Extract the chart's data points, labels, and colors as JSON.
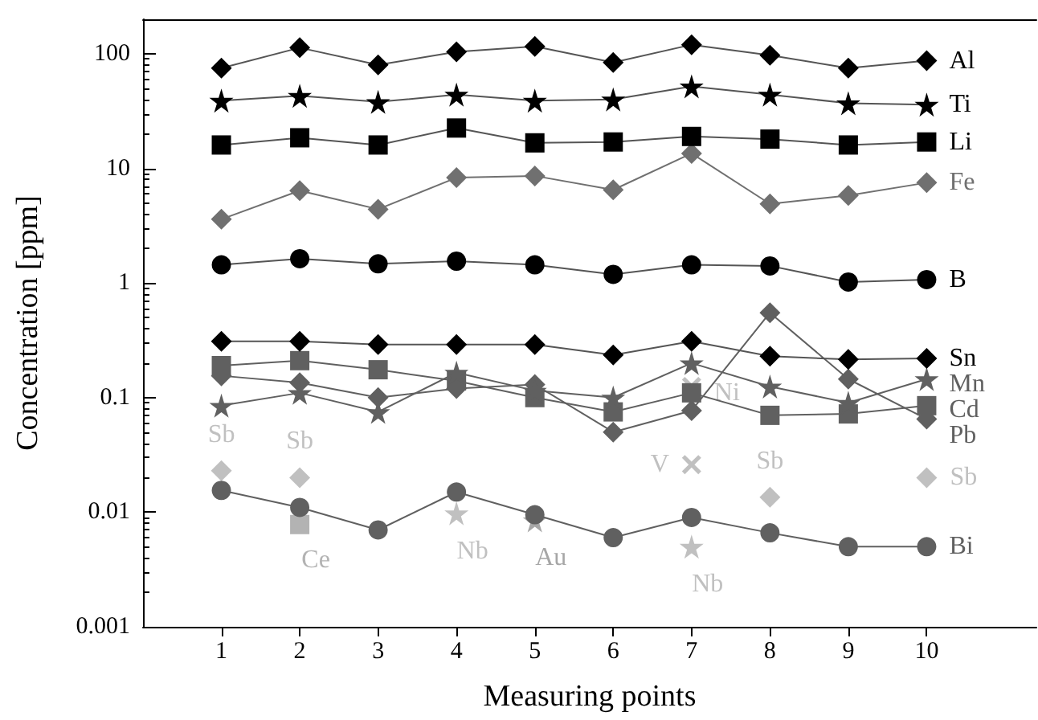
{
  "chart_data": {
    "type": "line",
    "xlabel": "Measuring points",
    "ylabel": "Concentration [ppm]",
    "log": "y",
    "grid": false,
    "legend": false,
    "x": [
      1,
      2,
      3,
      4,
      5,
      6,
      7,
      8,
      9,
      10
    ],
    "xlim": [
      0,
      11.4
    ],
    "xticks": [
      1,
      2,
      3,
      4,
      5,
      6,
      7,
      8,
      9,
      10
    ],
    "ylim": [
      0.001,
      200
    ],
    "yticks": [
      0.001,
      0.01,
      0.1,
      1,
      10,
      100
    ],
    "series": [
      {
        "name": "Al",
        "color": "#000000",
        "marker": "diamond",
        "values": [
          75,
          113,
          80,
          104,
          116,
          84,
          120,
          97,
          75,
          87
        ]
      },
      {
        "name": "Ti",
        "color": "#000000",
        "marker": "star",
        "values": [
          39,
          43,
          38,
          44,
          39,
          40,
          52,
          44,
          37,
          36
        ]
      },
      {
        "name": "Li",
        "color": "#000000",
        "marker": "square",
        "values": [
          16,
          18.5,
          16,
          22.5,
          16.7,
          17,
          19,
          18,
          16,
          17
        ]
      },
      {
        "name": "Fe",
        "color": "#707070",
        "marker": "diamond",
        "values": [
          3.6,
          6.4,
          4.4,
          8.3,
          8.6,
          6.5,
          13.5,
          4.9,
          5.8,
          7.5
        ]
      },
      {
        "name": "B",
        "color": "#000000",
        "marker": "circle",
        "values": [
          1.44,
          1.63,
          1.47,
          1.55,
          1.44,
          1.19,
          1.44,
          1.41,
          1.02,
          1.07
        ]
      },
      {
        "name": "Sn",
        "color": "#000000",
        "marker": "diamond",
        "values": [
          0.31,
          0.31,
          0.29,
          0.29,
          0.29,
          0.235,
          0.31,
          0.23,
          0.215,
          0.22
        ]
      },
      {
        "name": "Mn",
        "color": "#606060",
        "marker": "star",
        "values": [
          0.085,
          0.11,
          0.075,
          0.165,
          0.115,
          0.1,
          0.2,
          0.125,
          0.09,
          0.145
        ]
      },
      {
        "name": "Cd",
        "color": "#606060",
        "marker": "square",
        "values": [
          0.19,
          0.21,
          0.175,
          0.14,
          0.1,
          0.075,
          0.11,
          0.07,
          0.072,
          0.085
        ]
      },
      {
        "name": "Pb",
        "color": "#606060",
        "marker": "diamond",
        "values": [
          0.155,
          0.135,
          0.1,
          0.12,
          0.13,
          0.05,
          0.077,
          0.55,
          0.145,
          0.065
        ]
      },
      {
        "name": "Bi",
        "color": "#606060",
        "marker": "circle",
        "values": [
          0.0155,
          0.011,
          0.007,
          0.015,
          0.0095,
          0.006,
          0.009,
          0.0066,
          0.005,
          0.005
        ]
      },
      {
        "name": "Sb",
        "type": "scatter",
        "color": "#b0b0b0",
        "marker": "diamond",
        "x": [
          1,
          2,
          8,
          10
        ],
        "values": [
          0.023,
          0.02,
          0.0135,
          0.02
        ]
      },
      {
        "name": "V",
        "type": "scatter",
        "color": "#b0b0b0",
        "marker": "cross",
        "x": [
          7
        ],
        "values": [
          0.026
        ]
      },
      {
        "name": "Ni",
        "type": "scatter",
        "color": "#b0b0b0",
        "marker": "cross",
        "x": [
          7
        ],
        "values": [
          0.125
        ]
      },
      {
        "name": "Ce",
        "type": "scatter",
        "color": "#a0a0a0",
        "marker": "square",
        "x": [
          2
        ],
        "values": [
          0.0078
        ]
      },
      {
        "name": "Nb",
        "type": "scatter",
        "color": "#b0b0b0",
        "marker": "star",
        "x": [
          4,
          7
        ],
        "values": [
          0.0098,
          0.005
        ]
      },
      {
        "name": "Au",
        "type": "scatter",
        "color": "#909090",
        "marker": "star",
        "x": [
          5
        ],
        "values": [
          0.0085
        ]
      }
    ]
  }
}
